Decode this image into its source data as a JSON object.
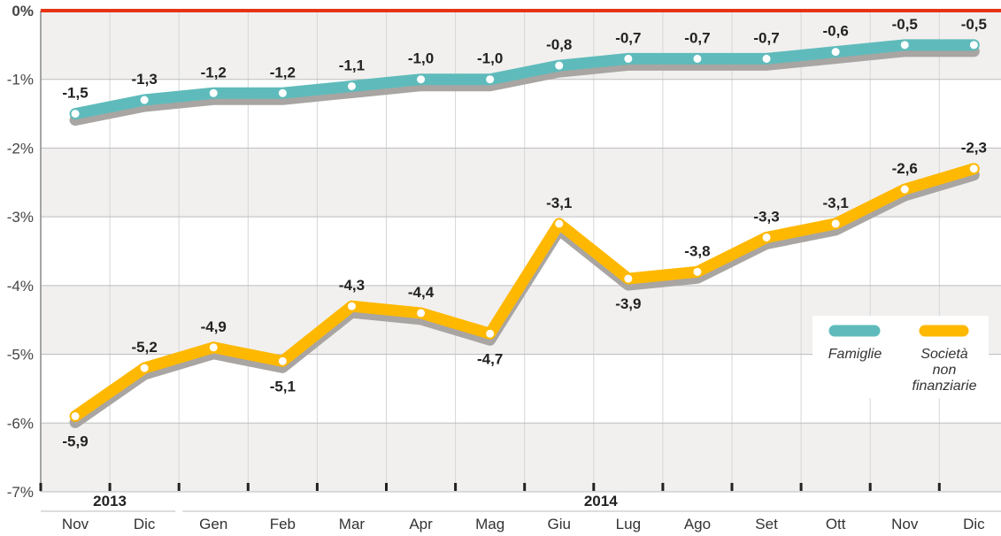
{
  "chart_data": {
    "type": "line",
    "title": "",
    "xlabel": "",
    "ylabel": "",
    "ylim": [
      -7,
      0
    ],
    "yticks": [
      "0%",
      "-1%",
      "-2%",
      "-3%",
      "-4%",
      "-5%",
      "-6%",
      "-7%"
    ],
    "x": [
      "Nov",
      "Dic",
      "Gen",
      "Feb",
      "Mar",
      "Apr",
      "Mag",
      "Giu",
      "Lug",
      "Ago",
      "Set",
      "Ott",
      "Nov",
      "Dic"
    ],
    "year_groups": [
      {
        "label": "2013",
        "count": 2
      },
      {
        "label": "2014",
        "count": 12
      }
    ],
    "legend_position": "bottom-right",
    "series": [
      {
        "name": "Famiglie",
        "color": "#5fbbbb",
        "values": [
          -1.5,
          -1.3,
          -1.2,
          -1.2,
          -1.1,
          -1.0,
          -1.0,
          -0.8,
          -0.7,
          -0.7,
          -0.7,
          -0.6,
          -0.5,
          -0.5
        ],
        "labels": [
          "-1,5",
          "-1,3",
          "-1,2",
          "-1,2",
          "-1,1",
          "-1,0",
          "-1,0",
          "-0,8",
          "-0,7",
          "-0,7",
          "-0,7",
          "-0,6",
          "-0,5",
          "-0,5"
        ]
      },
      {
        "name": "Società non finanziarie",
        "name_lines": [
          "Società",
          "non",
          "finanziarie"
        ],
        "color": "#ffb800",
        "values": [
          -5.9,
          -5.2,
          -4.9,
          -5.1,
          -4.3,
          -4.4,
          -4.7,
          -3.1,
          -3.9,
          -3.8,
          -3.3,
          -3.1,
          -2.6,
          -2.3
        ],
        "labels": [
          "-5,9",
          "-5,2",
          "-4,9",
          "-5,1",
          "-4,3",
          "-4,4",
          "-4,7",
          "-3,1",
          "-3,9",
          "-3,8",
          "-3,3",
          "-3,1",
          "-2,6",
          "-2,3"
        ]
      }
    ],
    "zero_line_color": "#e63312"
  }
}
